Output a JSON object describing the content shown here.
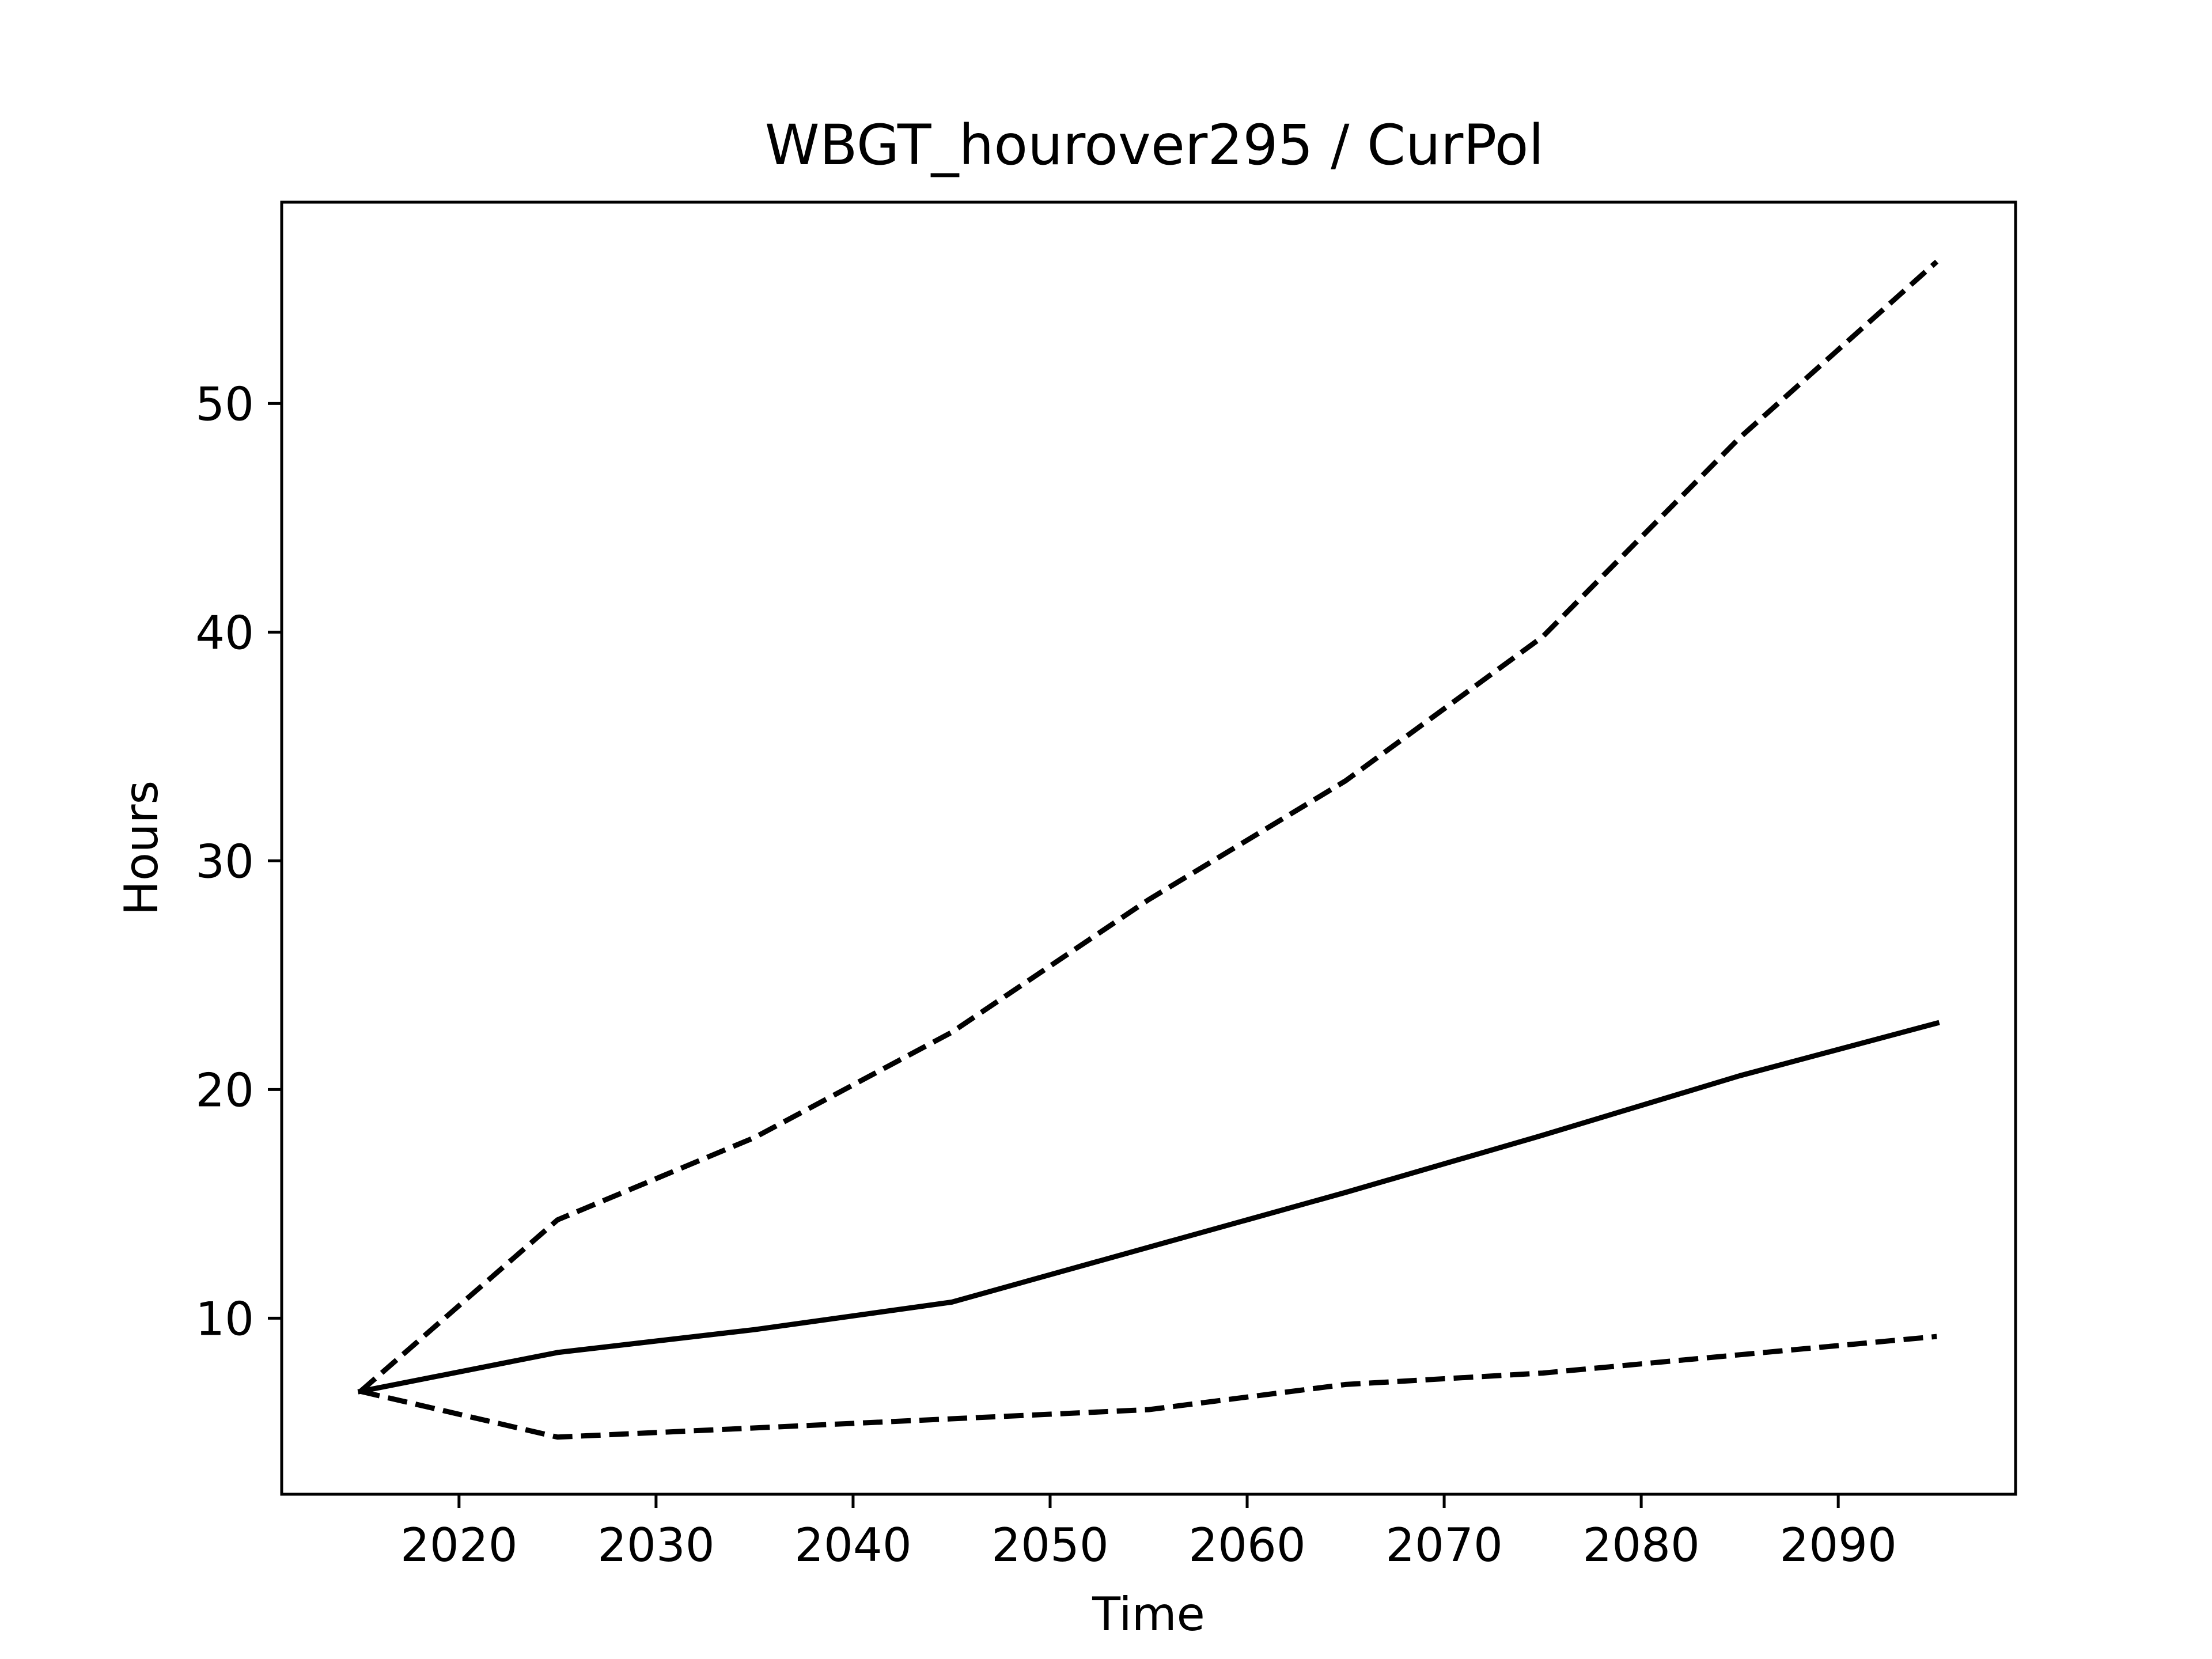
{
  "chart_data": {
    "type": "line",
    "title": "WBGT_hourover295 / CurPol",
    "xlabel": "Time",
    "ylabel": "Hours",
    "xlim": [
      2011,
      2099
    ],
    "ylim": [
      2.3,
      58.8
    ],
    "xticks": [
      2020,
      2030,
      2040,
      2050,
      2060,
      2070,
      2080,
      2090
    ],
    "yticks": [
      10,
      20,
      30,
      40,
      50
    ],
    "grid": false,
    "x": [
      2015,
      2025,
      2035,
      2045,
      2055,
      2065,
      2075,
      2085,
      2095
    ],
    "series": [
      {
        "values": [
          6.8,
          14.3,
          17.9,
          22.5,
          28.3,
          33.5,
          39.8,
          48.5,
          56.2
        ],
        "style": "dashed",
        "color": "#000000"
      },
      {
        "values": [
          6.8,
          8.5,
          9.5,
          10.7,
          13.1,
          15.5,
          18.0,
          20.6,
          22.9
        ],
        "style": "solid",
        "color": "#000000"
      },
      {
        "values": [
          6.8,
          4.8,
          5.2,
          5.6,
          6.0,
          7.1,
          7.6,
          8.4,
          9.2
        ],
        "style": "dashed",
        "color": "#000000"
      }
    ]
  }
}
